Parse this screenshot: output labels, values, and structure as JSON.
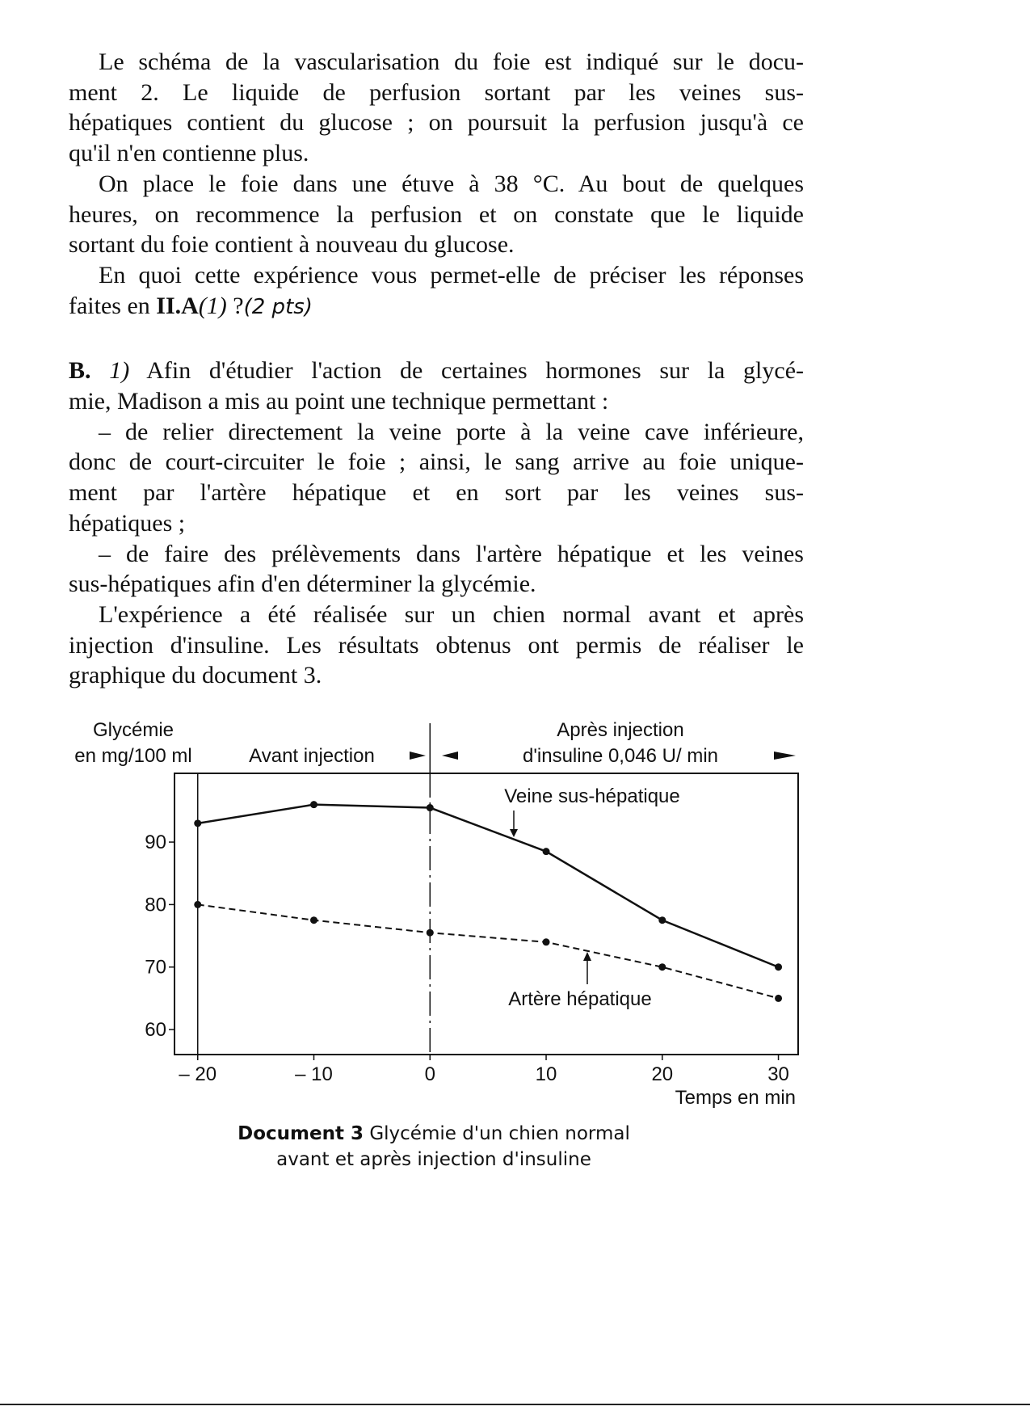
{
  "text": {
    "p1": [
      "Le schéma de la vascularisation du foie est indiqué sur le docu-",
      "ment 2. Le liquide de perfusion sortant par les veines sus-",
      "hépatiques contient du glucose ; on poursuit la perfusion jusqu'à ce",
      "qu'il n'en contienne plus."
    ],
    "p2": [
      "On place le foie dans une étuve à 38 °C. Au bout de quelques",
      "heures, on recommence la perfusion et on constate que le liquide",
      "sortant du foie contient à nouveau du glucose."
    ],
    "p3": {
      "line1": "En quoi cette expérience vous permet-elle de préciser les réponses",
      "pre": "faites en ",
      "ref_bold": "II.A",
      "ref_italic": "(1)",
      "post": " ?",
      "handwritten": "(2 pts)"
    },
    "b": {
      "label_bold": "B.",
      "num_italic": "1)",
      "line1_rest": " Afin d'étudier l'action de certaines hormones sur la glycé-",
      "line2": "mie, Madison a mis au point une technique permettant :"
    },
    "p4": [
      "– de relier directement la veine porte à la veine cave inférieure,",
      "donc de court-circuiter le foie ; ainsi, le sang arrive au foie unique-",
      "ment par l'artère hépatique et en sort par les veines sus-",
      "hépatiques ;"
    ],
    "p5": [
      "– de faire des prélèvements dans l'artère hépatique et les veines",
      "sus-hépatiques afin d'en déterminer la glycémie."
    ],
    "p6": [
      "L'expérience a été réalisée sur un chien normal avant et après",
      "injection d'insuline. Les résultats obtenus ont permis de réaliser le",
      "graphique du document 3."
    ]
  },
  "chart_data": {
    "type": "line",
    "ylabel": [
      "Glycémie",
      "en mg/100 ml"
    ],
    "xlabel": "Temps en min",
    "x": [
      -20,
      -10,
      0,
      10,
      20,
      30
    ],
    "xticks": [
      "– 20",
      "– 10",
      "0",
      "10",
      "20",
      "30"
    ],
    "yticks": [
      60,
      70,
      80,
      90
    ],
    "xlim": [
      -22,
      31.7
    ],
    "ylim": [
      56,
      101
    ],
    "phase_before": "Avant injection",
    "phase_after": [
      "Après injection",
      "d'insuline 0,046 U/ min"
    ],
    "series": [
      {
        "name": "Veine sus-hépatique",
        "style": "solid",
        "values": [
          93,
          96,
          95.5,
          88.5,
          77.5,
          70
        ]
      },
      {
        "name": "Artère hépatique",
        "style": "dashed",
        "values": [
          80,
          77.5,
          75.5,
          74,
          70,
          65
        ]
      }
    ],
    "grid": false,
    "caption": {
      "bold": "Document 3",
      "rest": " Glycémie d'un chien normal",
      "line2": "avant et après injection d'insuline"
    }
  }
}
